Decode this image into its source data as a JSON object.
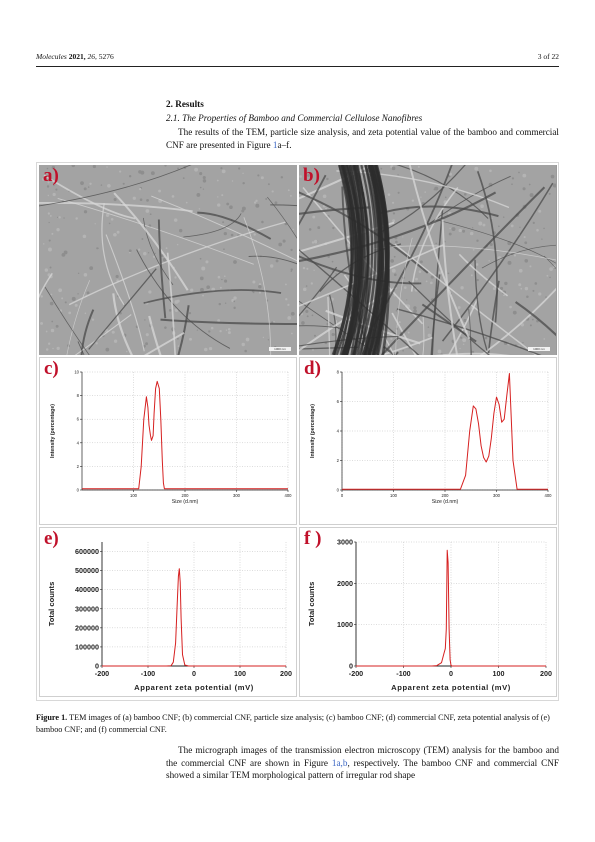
{
  "header": {
    "journal": "Molecules",
    "year": "2021,",
    "volume": "26,",
    "article": "5276",
    "page": "3 of 22"
  },
  "section": {
    "title": "2. Results",
    "subtitle": "2.1. The Properties of Bamboo and Commercial Cellulose Nanofibres",
    "para1_text": "The results of the TEM, particle size analysis, and zeta potential value of the bamboo and commercial CNF are presented in Figure ",
    "para1_ref": "1",
    "para1_ref2": "a–f",
    "para1_end": "."
  },
  "figure": {
    "tags": [
      "a)",
      "b)",
      "c)",
      "d)",
      "e)",
      "f )"
    ],
    "scale_bar": "1000 nm",
    "caption": {
      "label": "Figure 1.",
      "text": " TEM images of (a) bamboo CNF; (b) commercial CNF, particle size analysis; (c) bamboo CNF; (d) commercial CNF, zeta potential analysis of (e) bamboo CNF; and (f) commercial CNF."
    }
  },
  "para2": {
    "text_a": "The micrograph images of the transmission electron microscopy (TEM) analysis for the bamboo and the commercial CNF are shown in Figure ",
    "ref": "1a,b",
    "text_b": ", respectively. The bamboo CNF and commercial CNF showed a similar TEM morphological pattern of irregular rod shape"
  },
  "chart_data": [
    {
      "panel": "c",
      "type": "line",
      "xlabel": "Size (d.nm)",
      "ylabel": "Intensity (percentage)",
      "xlim": [
        0,
        400
      ],
      "ylim": [
        0,
        10
      ],
      "xticks": [
        100,
        200,
        300,
        400
      ],
      "yticks": [
        0,
        2,
        4,
        6,
        8,
        10
      ],
      "grid": true,
      "series": [
        {
          "color": "#d62020",
          "x": [
            0,
            100,
            110,
            115,
            120,
            125,
            128,
            130,
            133,
            135,
            138,
            140,
            143,
            146,
            150,
            153,
            156,
            158,
            160,
            400
          ],
          "y": [
            0.1,
            0.1,
            0.1,
            2,
            6,
            7.9,
            7,
            5.5,
            4.6,
            4.2,
            4.6,
            6.5,
            8.6,
            9.2,
            8.6,
            6,
            2.5,
            0.6,
            0.1,
            0.1
          ]
        }
      ]
    },
    {
      "panel": "d",
      "type": "line",
      "xlabel": "Size (d.nm)",
      "ylabel": "Intensity (percentage)",
      "xlim": [
        0,
        400
      ],
      "ylim": [
        0,
        8
      ],
      "xticks": [
        0,
        100,
        200,
        300,
        400
      ],
      "yticks": [
        0,
        2,
        4,
        6,
        8
      ],
      "grid": true,
      "series": [
        {
          "color": "#d62020",
          "x": [
            0,
            140,
            230,
            240,
            248,
            255,
            260,
            265,
            270,
            275,
            280,
            285,
            290,
            295,
            300,
            305,
            310,
            315,
            320,
            325,
            332,
            340,
            345,
            350,
            400
          ],
          "y": [
            0.05,
            0.05,
            0.05,
            1,
            4,
            5.7,
            5.5,
            4.5,
            3,
            2.2,
            1.9,
            2.3,
            3.5,
            5.2,
            6.3,
            5.8,
            4.6,
            4.8,
            6.4,
            7.9,
            2,
            0.05,
            0.05,
            0.05,
            0.05
          ]
        }
      ]
    },
    {
      "panel": "e",
      "type": "line",
      "xlabel": "Apparent zeta potential (mV)",
      "ylabel": "Total counts",
      "xlim": [
        -200,
        200
      ],
      "ylim": [
        0,
        650000
      ],
      "xticks": [
        -200,
        -100,
        0,
        100,
        200
      ],
      "yticks": [
        0,
        100000,
        200000,
        300000,
        400000,
        500000,
        600000
      ],
      "grid": true,
      "series": [
        {
          "color": "#d62020",
          "x": [
            -200,
            -60,
            -50,
            -45,
            -40,
            -37,
            -34,
            -32,
            -30,
            -28,
            -25,
            -20,
            -12,
            200
          ],
          "y": [
            0,
            0,
            1000,
            20000,
            120000,
            300000,
            470000,
            510000,
            440000,
            250000,
            60000,
            5000,
            0,
            0
          ]
        }
      ]
    },
    {
      "panel": "f",
      "type": "line",
      "xlabel": "Apparent zeta potential (mV)",
      "ylabel": "Total counts",
      "xlim": [
        -200,
        200
      ],
      "ylim": [
        0,
        3000
      ],
      "xticks": [
        -200,
        -100,
        0,
        100,
        200
      ],
      "yticks": [
        0,
        1000,
        2000,
        3000
      ],
      "grid": true,
      "series": [
        {
          "color": "#d62020",
          "x": [
            -200,
            -40,
            -30,
            -20,
            -15,
            -12,
            -10,
            -8,
            -6,
            -4,
            -2,
            0,
            2,
            200
          ],
          "y": [
            0,
            0,
            10,
            80,
            300,
            420,
            900,
            2800,
            2500,
            900,
            150,
            20,
            0,
            0
          ]
        }
      ]
    }
  ]
}
